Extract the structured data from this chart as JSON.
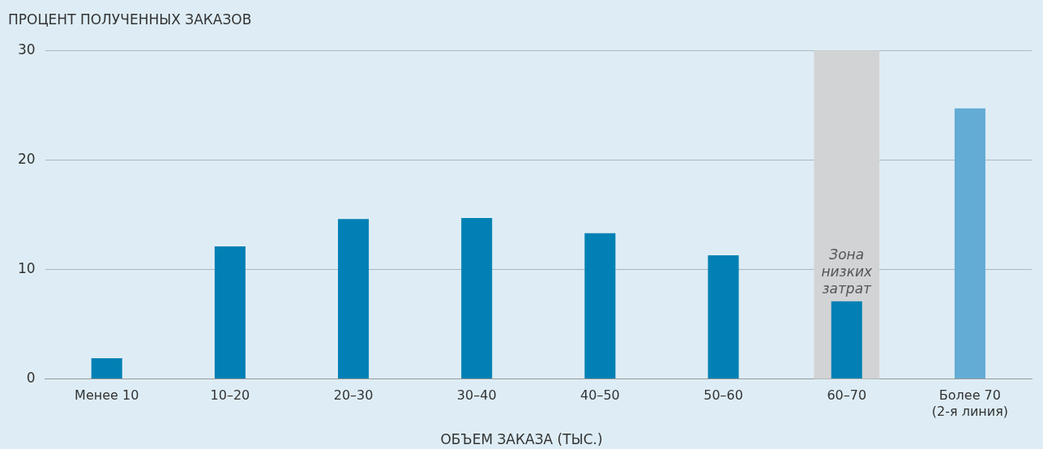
{
  "chart_data": {
    "type": "bar",
    "ylabel": "ПРОЦЕНТ ПОЛУЧЕННЫХ ЗАКАЗОВ",
    "xlabel": "ОБЪЕМ ЗАКАЗА (ТЫС.)",
    "categories": [
      "Менее 10",
      "10–20",
      "20–30",
      "30–40",
      "40–50",
      "50–60",
      "60–70",
      "Более 70\n(2-я линия)"
    ],
    "values": [
      1.9,
      12.1,
      14.6,
      14.7,
      13.3,
      11.3,
      7.1,
      24.7
    ],
    "colors": [
      "#0080b4",
      "#0080b4",
      "#0080b4",
      "#0080b4",
      "#0080b4",
      "#0080b4",
      "#0080b4",
      "#63acd5"
    ],
    "ylim": [
      0,
      30
    ],
    "yticks": [
      0,
      10,
      20,
      30
    ],
    "grid": "y",
    "legend": false,
    "bands": [
      {
        "axis": "x",
        "from": "60–70",
        "to": "60–70",
        "label": "Зона низких затрат",
        "color": "#d2d3d5"
      }
    ]
  }
}
